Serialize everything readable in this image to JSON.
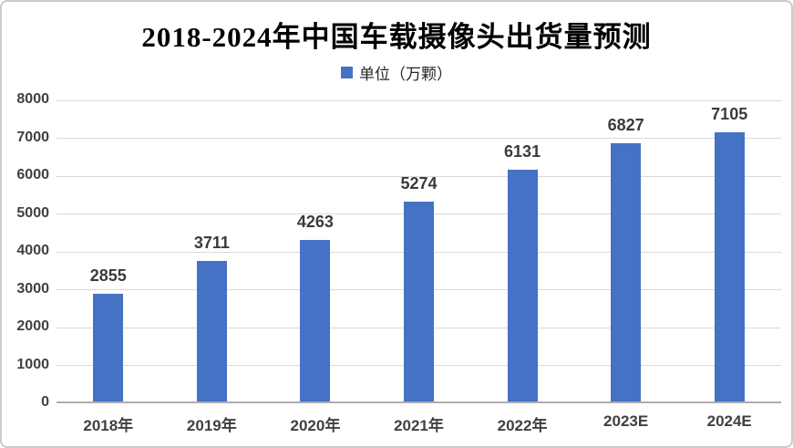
{
  "chart_data": {
    "type": "bar",
    "title": "2018-2024年中国车载摄像头出货量预测",
    "legend_label": "单位（万颗）",
    "legend_position": "top-center",
    "categories": [
      "2018年",
      "2019年",
      "2020年",
      "2021年",
      "2022年",
      "2023E",
      "2024E"
    ],
    "values": [
      2855,
      3711,
      4263,
      5274,
      6131,
      6827,
      7105
    ],
    "ylim": [
      0,
      8000
    ],
    "ytick_step": 1000,
    "ytick_labels": [
      "0",
      "1000",
      "2000",
      "3000",
      "4000",
      "5000",
      "6000",
      "7000",
      "8000"
    ],
    "grid": true,
    "bar_color": "#4472C4",
    "grid_color": "#D9D9D9",
    "axis_color": "#ADADAD",
    "label_color": "#404040",
    "title_color": "#000000",
    "background_color": "#FFFFFF",
    "frame_border_color": "#CBCBCB"
  }
}
